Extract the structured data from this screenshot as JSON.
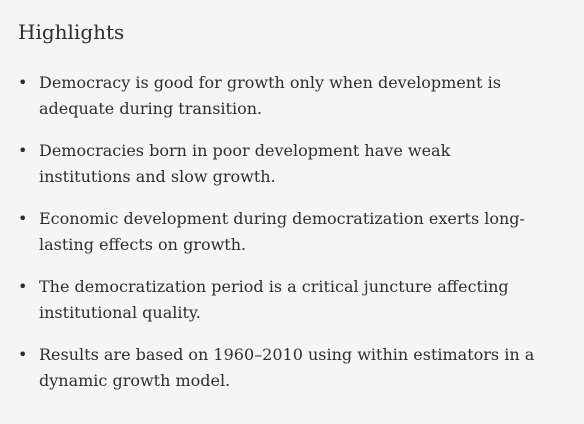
{
  "highlights": {
    "title": "Highlights",
    "bullet_symbol": "•",
    "items": [
      "Democracy is good for growth only when development is adequate during transition.",
      "Democracies born in poor development have weak institutions and slow growth.",
      "Economic development during democratization exerts long-lasting effects on growth.",
      "The democratization period is a critical juncture affecting institutional quality.",
      "Results are based on 1960–2010 using within estimators in a dynamic growth model."
    ]
  }
}
